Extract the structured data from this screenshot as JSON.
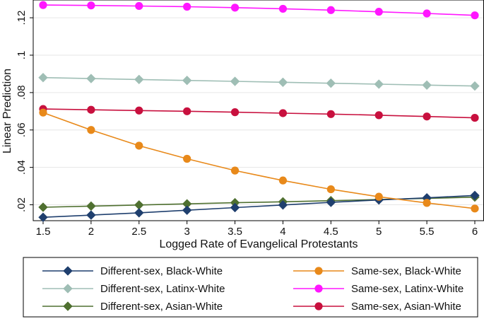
{
  "chart_data": {
    "type": "line",
    "title": "",
    "xlabel": "Logged Rate of Evangelical Protestants",
    "ylabel": "Linear Prediction",
    "xlim": [
      1.5,
      6
    ],
    "ylim": [
      0.0115,
      0.1295
    ],
    "x": [
      1.5,
      2,
      2.5,
      3,
      3.5,
      4,
      4.5,
      5,
      5.5,
      6
    ],
    "x_ticks": [
      {
        "value": 1.5,
        "label": "1.5"
      },
      {
        "value": 2,
        "label": "2"
      },
      {
        "value": 2.5,
        "label": "2.5"
      },
      {
        "value": 3,
        "label": "3"
      },
      {
        "value": 3.5,
        "label": "3.5"
      },
      {
        "value": 4,
        "label": "4"
      },
      {
        "value": 4.5,
        "label": "4.5"
      },
      {
        "value": 5,
        "label": "5"
      },
      {
        "value": 5.5,
        "label": "5.5"
      },
      {
        "value": 6,
        "label": "6"
      }
    ],
    "y_ticks": [
      {
        "value": 0.02,
        "label": ".02"
      },
      {
        "value": 0.04,
        "label": ".04"
      },
      {
        "value": 0.06,
        "label": ".06"
      },
      {
        "value": 0.08,
        "label": ".08"
      },
      {
        "value": 0.1,
        "label": ".1"
      },
      {
        "value": 0.12,
        "label": ".12"
      }
    ],
    "grid": "horizontal",
    "legend_position": "bottom",
    "series": [
      {
        "name": "Different-sex, Black-White",
        "color": "#1f3f6e",
        "marker": "diamond",
        "values": [
          0.0133,
          0.0145,
          0.0157,
          0.0171,
          0.0185,
          0.0199,
          0.0213,
          0.0226,
          0.0237,
          0.025
        ]
      },
      {
        "name": "Same-sex, Black-White",
        "color": "#e8891a",
        "marker": "circle",
        "values": [
          0.0693,
          0.06,
          0.0516,
          0.0446,
          0.0383,
          0.033,
          0.0283,
          0.0243,
          0.021,
          0.018
        ]
      },
      {
        "name": "Different-sex, Latinx-White",
        "color": "#9fbeb5",
        "marker": "diamond",
        "values": [
          0.088,
          0.0875,
          0.087,
          0.0865,
          0.086,
          0.0855,
          0.085,
          0.0845,
          0.084,
          0.0835
        ]
      },
      {
        "name": "Same-sex, Latinx-White",
        "color": "#ff16ff",
        "marker": "circle",
        "values": [
          0.1268,
          0.1266,
          0.1263,
          0.1259,
          0.1254,
          0.1248,
          0.1241,
          0.1232,
          0.1223,
          0.1213
        ]
      },
      {
        "name": "Different-sex, Asian-White",
        "color": "#4f7030",
        "marker": "diamond",
        "values": [
          0.0187,
          0.0193,
          0.0199,
          0.0205,
          0.0211,
          0.0216,
          0.0222,
          0.0228,
          0.0234,
          0.0241
        ]
      },
      {
        "name": "Same-sex, Asian-White",
        "color": "#c8103e",
        "marker": "circle",
        "values": [
          0.0712,
          0.0708,
          0.0704,
          0.07,
          0.0695,
          0.069,
          0.0685,
          0.0679,
          0.0672,
          0.0665
        ]
      }
    ]
  }
}
